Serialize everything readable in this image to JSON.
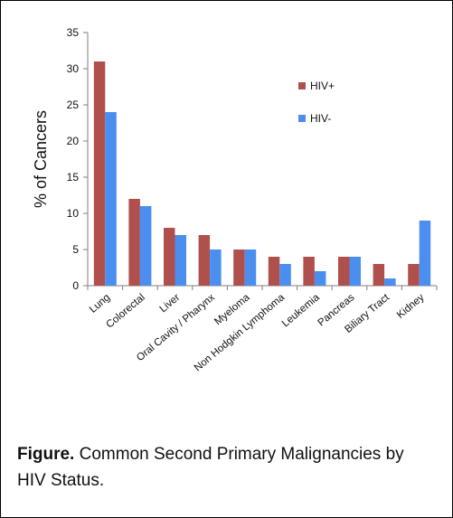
{
  "chart_data": {
    "type": "bar",
    "ylabel": "% of Cancers",
    "ylim": [
      0,
      35
    ],
    "yticks": [
      0,
      5,
      10,
      15,
      20,
      25,
      30,
      35
    ],
    "categories": [
      "Lung",
      "Colorectal",
      "Liver",
      "Oral Cavity / Pharynx",
      "Myeloma",
      "Non Hodgkin Lymphoma",
      "Leukemia",
      "Pancreas",
      "Biliary Tract",
      "Kidney"
    ],
    "series": [
      {
        "name": "HIV+",
        "color": "#b0504d",
        "values": [
          31,
          12,
          8,
          7,
          5,
          4,
          4,
          4,
          3,
          3
        ]
      },
      {
        "name": "HIV-",
        "color": "#4a8ef0",
        "values": [
          24,
          11,
          7,
          5,
          5,
          3,
          2,
          4,
          1,
          9
        ]
      }
    ],
    "legend_position": "top-right",
    "grid": false
  },
  "caption": {
    "lead": "Figure.",
    "text": " Common Second Primary Malignancies by HIV Status."
  }
}
